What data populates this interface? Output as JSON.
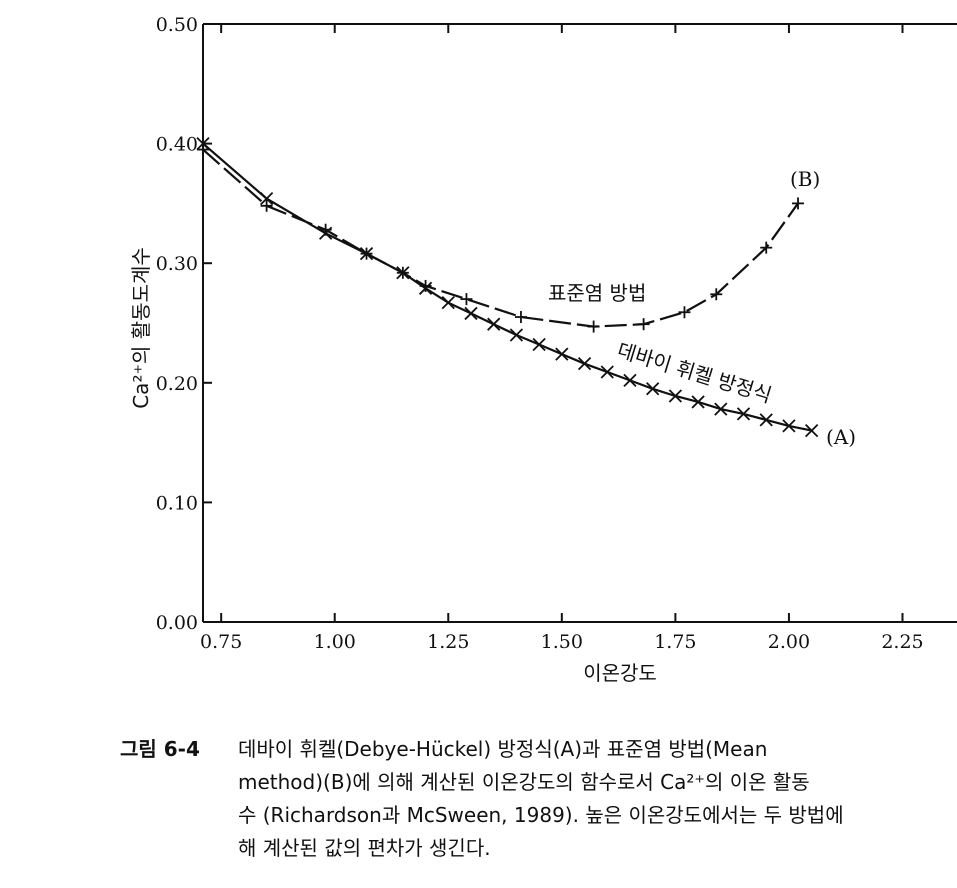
{
  "chart_data": {
    "type": "line",
    "xlabel": "이온강도",
    "ylabel": "Ca²⁺의 활동도계수",
    "xlim": [
      0.71,
      2.37
    ],
    "ylim": [
      0.0,
      0.5
    ],
    "x_ticks": [
      "0.75",
      "1.00",
      "1.25",
      "1.50",
      "1.75",
      "2.00",
      "2.25"
    ],
    "y_ticks": [
      "0.00",
      "0.10",
      "0.20",
      "0.30",
      "0.40",
      "0.50"
    ],
    "grid": false,
    "series": [
      {
        "name": "(A)",
        "label": "데바이 휘켈 방정식",
        "marker": "x",
        "x": [
          0.71,
          0.85,
          0.98,
          1.07,
          1.15,
          1.2,
          1.25,
          1.3,
          1.35,
          1.4,
          1.45,
          1.5,
          1.55,
          1.6,
          1.65,
          1.7,
          1.75,
          1.8,
          1.85,
          1.9,
          1.95,
          2.0,
          2.05
        ],
        "y": [
          0.4,
          0.354,
          0.325,
          0.308,
          0.292,
          0.279,
          0.267,
          0.258,
          0.249,
          0.24,
          0.232,
          0.224,
          0.216,
          0.209,
          0.202,
          0.195,
          0.189,
          0.184,
          0.178,
          0.174,
          0.169,
          0.164,
          0.16
        ]
      },
      {
        "name": "(B)",
        "label": "표준염 방법",
        "marker": "+",
        "x": [
          0.71,
          0.85,
          0.98,
          1.07,
          1.15,
          1.2,
          1.29,
          1.41,
          1.57,
          1.68,
          1.77,
          1.84,
          1.95,
          2.02
        ],
        "y": [
          0.395,
          0.348,
          0.328,
          0.308,
          0.292,
          0.281,
          0.27,
          0.255,
          0.247,
          0.249,
          0.259,
          0.274,
          0.313,
          0.35
        ]
      }
    ]
  },
  "annotations": {
    "series_b_label": "(B)",
    "series_b_name": "표준염 방법",
    "series_a_name": "데바이 휘켈 방정식",
    "series_a_label": "(A)"
  },
  "caption": {
    "label": "그림 6-4",
    "lines": [
      "데바이  휘켈(Debye-Hückel)  방정식(A)과  표준염  방법(Mean",
      "method)(B)에 의해 계산된 이온강도의 함수로서 Ca²⁺의 이온 활동",
      "수 (Richardson과 McSween, 1989). 높은 이온강도에서는 두 방법에",
      "해 계산된 값의 편차가 생긴다."
    ]
  }
}
